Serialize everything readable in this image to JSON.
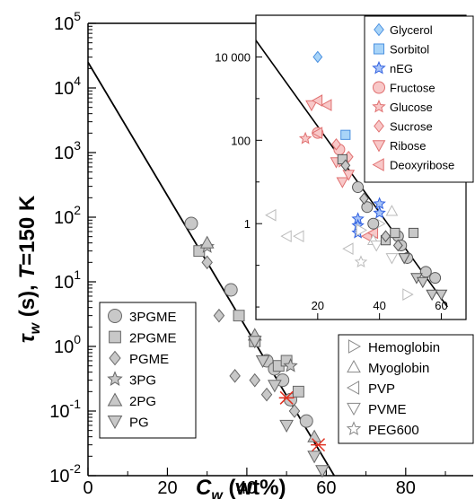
{
  "chart_data": {
    "type": "scatter",
    "xlabel": "C_w (wt%)",
    "ylabel": "τ_w (s), T=150 K",
    "xlabel_base": "C",
    "xlabel_sub": "w",
    "xlabel_rest": " (wt%)",
    "ylabel_base": "τ",
    "ylabel_sub": "w",
    "ylabel_rest": " (s),  ",
    "ylabel_T": "T",
    "ylabel_tail": "=150 K",
    "x_range": [
      0,
      97
    ],
    "y_range_log10": [
      -2,
      5
    ],
    "y_scale": "log",
    "x_ticks": [
      0,
      20,
      40,
      60,
      80
    ],
    "x_tick_labels": [
      "0",
      "20",
      "40",
      "60",
      "80"
    ],
    "y_ticks_log10": [
      -2,
      -1,
      0,
      1,
      2,
      3,
      4,
      5
    ],
    "y_tick_base": "10",
    "y_tick_exps": [
      "-2",
      "-1",
      "0",
      "1",
      "2",
      "3",
      "4",
      "5"
    ],
    "fit_line": {
      "x": [
        0,
        62
      ],
      "y": [
        25000,
        0.01
      ]
    },
    "series": [
      {
        "name": "3PGME",
        "marker": "circle",
        "color": "#c8c8c8",
        "points": [
          [
            26,
            80
          ],
          [
            36,
            7.5
          ],
          [
            45,
            0.6
          ],
          [
            47,
            0.45
          ],
          [
            49,
            0.3
          ],
          [
            51,
            0.15
          ],
          [
            55,
            0.07
          ]
        ]
      },
      {
        "name": "2PGME",
        "marker": "square",
        "color": "#c8c8c8",
        "points": [
          [
            28,
            30
          ],
          [
            38,
            3
          ],
          [
            42,
            1.2
          ],
          [
            48,
            0.5
          ],
          [
            50,
            0.6
          ],
          [
            53,
            0.2
          ]
        ]
      },
      {
        "name": "PGME",
        "marker": "diamond",
        "color": "#c8c8c8",
        "points": [
          [
            30,
            20
          ],
          [
            33,
            3
          ],
          [
            37,
            0.35
          ],
          [
            42,
            0.3
          ],
          [
            45,
            0.18
          ],
          [
            52,
            0.1
          ]
        ]
      },
      {
        "name": "3PG",
        "marker": "star",
        "color": "#c8c8c8",
        "points": [
          [
            30,
            35
          ],
          [
            51,
            0.5
          ]
        ]
      },
      {
        "name": "2PG",
        "marker": "triangle-up",
        "color": "#c8c8c8",
        "points": [
          [
            30,
            40
          ],
          [
            42,
            1.5
          ],
          [
            57,
            0.04
          ]
        ]
      },
      {
        "name": "PG",
        "marker": "triangle-down",
        "color": "#c8c8c8",
        "points": [
          [
            42,
            1.2
          ],
          [
            44,
            0.6
          ],
          [
            47,
            0.25
          ],
          [
            50,
            0.06
          ],
          [
            57,
            0.02
          ],
          [
            59,
            0.012
          ]
        ]
      },
      {
        "name": "",
        "marker": "cross",
        "color": "#e03020",
        "points": [
          [
            50,
            0.16
          ],
          [
            58,
            0.03
          ]
        ]
      }
    ],
    "inset": {
      "x_range": [
        0,
        68
      ],
      "y_range_log10": [
        -2.3,
        5
      ],
      "x_ticks": [
        20,
        40,
        60
      ],
      "x_tick_labels": [
        "20",
        "40",
        "60"
      ],
      "y_ticks_log10": [
        0,
        2,
        4
      ],
      "y_tick_labels": [
        "1",
        "100",
        "10 000"
      ],
      "fit_line": {
        "x": [
          0,
          62
        ],
        "y": [
          25000,
          0.01
        ]
      },
      "series": [
        {
          "name": "Glycerol",
          "marker": "diamond",
          "color": "#a8d4f8",
          "stroke": "#4a90e0",
          "points": [
            [
              20,
              10000
            ]
          ]
        },
        {
          "name": "Sorbitol",
          "marker": "square",
          "color": "#a8d4f8",
          "stroke": "#4a90e0",
          "points": [
            [
              29,
              135
            ]
          ]
        },
        {
          "name": "nEG",
          "marker": "star",
          "color": "#a8c4f8",
          "stroke": "#3060e0",
          "points": [
            [
              33,
              1.3
            ],
            [
              33,
              0.9
            ],
            [
              33,
              0.6
            ],
            [
              40,
              3.0
            ],
            [
              40,
              1.8
            ]
          ]
        },
        {
          "name": "Fructose",
          "marker": "circle",
          "color": "#f8c8c8",
          "stroke": "#e07070",
          "points": [
            [
              20,
              150
            ],
            [
              27,
              60
            ]
          ]
        },
        {
          "name": "Glucose",
          "marker": "star",
          "color": "#f8c8c8",
          "stroke": "#e07070",
          "points": [
            [
              16,
              110
            ],
            [
              28,
              30
            ]
          ]
        },
        {
          "name": "Sucrose",
          "marker": "diamond",
          "color": "#f8c8c8",
          "stroke": "#e07070",
          "points": [
            [
              26,
              80
            ],
            [
              30,
              40
            ]
          ]
        },
        {
          "name": "Ribose",
          "marker": "triangle-down",
          "color": "#f8c8c8",
          "stroke": "#e07070",
          "points": [
            [
              18,
              700
            ],
            [
              26,
              30
            ],
            [
              28,
              10
            ],
            [
              30,
              15
            ]
          ]
        },
        {
          "name": "Deoxyribose",
          "marker": "triangle-left",
          "color": "#f8c8c8",
          "stroke": "#e07070",
          "points": [
            [
              20,
              900
            ],
            [
              23,
              700
            ],
            [
              20,
              150
            ],
            [
              36,
              0.5
            ],
            [
              38,
              0.6
            ]
          ]
        },
        {
          "name": "Hemoglobin",
          "marker": "triangle-right",
          "color": "#ffffff",
          "stroke": "#bbbbbb",
          "points": [
            [
              40,
              1.0
            ],
            [
              49,
              0.02
            ],
            [
              34,
              0.7
            ]
          ]
        },
        {
          "name": "Myoglobin",
          "marker": "triangle-up",
          "color": "#ffffff",
          "stroke": "#bbbbbb",
          "points": [
            [
              44,
              2.0
            ],
            [
              38,
              0.4
            ]
          ]
        },
        {
          "name": "PVP",
          "marker": "triangle-left",
          "color": "#ffffff",
          "stroke": "#bbbbbb",
          "points": [
            [
              5,
              1.6
            ],
            [
              10,
              0.5
            ],
            [
              14,
              0.5
            ],
            [
              30,
              0.25
            ]
          ]
        },
        {
          "name": "PVME",
          "marker": "triangle-down",
          "color": "#ffffff",
          "stroke": "#bbbbbb",
          "points": [
            [
              39,
              0.3
            ],
            [
              44,
              0.15
            ]
          ]
        },
        {
          "name": "PEG600",
          "marker": "star",
          "color": "#ffffff",
          "stroke": "#bbbbbb",
          "points": [
            [
              34,
              0.12
            ]
          ]
        },
        {
          "name": "",
          "marker": "circle",
          "color": "#c8c8c8",
          "stroke": "#555555",
          "points": [
            [
              33,
              7.5
            ],
            [
              36,
              2.5
            ],
            [
              38,
              1.0
            ],
            [
              46,
              0.5
            ],
            [
              49,
              0.15
            ],
            [
              55,
              0.07
            ],
            [
              58,
              0.05
            ],
            [
              47,
              0.3
            ]
          ]
        },
        {
          "name": "",
          "marker": "square",
          "color": "#c8c8c8",
          "stroke": "#555555",
          "points": [
            [
              28,
              35
            ],
            [
              45,
              0.6
            ],
            [
              51,
              0.6
            ],
            [
              42,
              0.4
            ]
          ]
        },
        {
          "name": "",
          "marker": "diamond",
          "color": "#c8c8c8",
          "stroke": "#555555",
          "points": [
            [
              29,
              25
            ],
            [
              35,
              4.0
            ],
            [
              42,
              0.5
            ],
            [
              46,
              0.3
            ]
          ]
        },
        {
          "name": "",
          "marker": "triangle-down",
          "color": "#c8c8c8",
          "stroke": "#555555",
          "points": [
            [
              48,
              0.15
            ],
            [
              52,
              0.05
            ],
            [
              57,
              0.02
            ],
            [
              60,
              0.02
            ],
            [
              54,
              0.04
            ]
          ]
        }
      ],
      "legend_top": [
        "Glycerol",
        "Sorbitol",
        "nEG",
        "Fructose",
        "Glucose",
        "Sucrose",
        "Ribose",
        "Deoxyribose"
      ],
      "legend_bottom": [
        "Hemoglobin",
        "Myoglobin",
        "PVP",
        "PVME",
        "PEG600"
      ]
    },
    "legend_main": [
      "3PGME",
      "2PGME",
      "PGME",
      "3PG",
      "2PG",
      "PG"
    ]
  }
}
